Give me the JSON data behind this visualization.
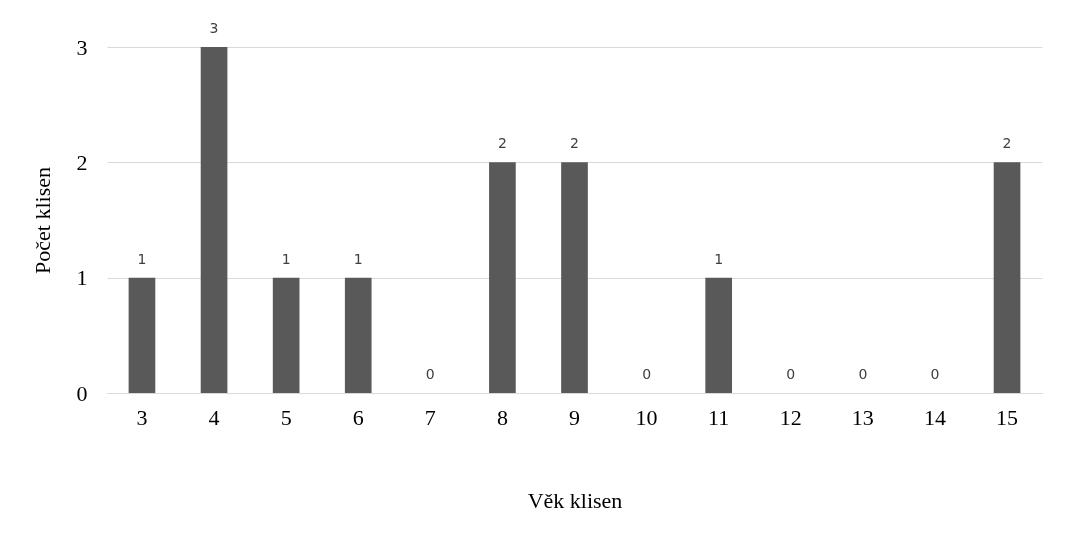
{
  "chart_data": {
    "type": "bar",
    "xlabel": "Věk klisen",
    "ylabel": "Počet klisen",
    "categories": [
      "3",
      "4",
      "5",
      "6",
      "7",
      "8",
      "9",
      "10",
      "11",
      "12",
      "13",
      "14",
      "15"
    ],
    "values": [
      1,
      3,
      1,
      1,
      0,
      2,
      2,
      0,
      1,
      0,
      0,
      0,
      2
    ],
    "color": "#595959",
    "ylim": [
      0,
      3
    ],
    "yticks": [
      0,
      1,
      2,
      3
    ],
    "grid": "y",
    "data_labels": true
  }
}
